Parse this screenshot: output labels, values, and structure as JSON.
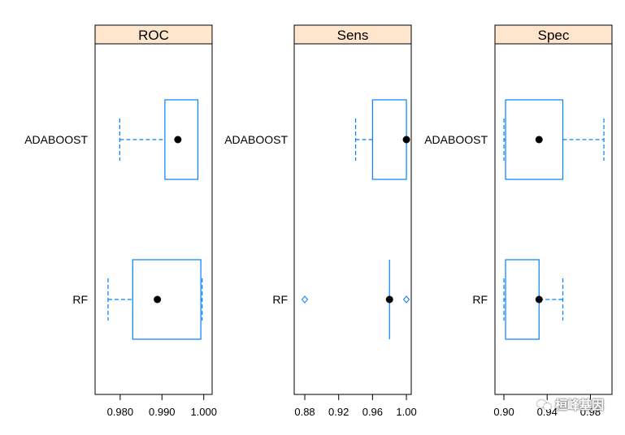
{
  "chart_data": [
    {
      "type": "box",
      "panel_title": "ROC",
      "categories": [
        "ADABOOST",
        "RF"
      ],
      "xlim": [
        0.974,
        1.002
      ],
      "ticks": [
        0.98,
        0.99,
        1.0
      ],
      "tick_labels": [
        "0.980",
        "0.990",
        "1.000"
      ],
      "series": [
        {
          "category": "ADABOOST",
          "min": 0.9799,
          "q1": 0.9907,
          "median": 0.9938,
          "q3": 0.9986,
          "max": 0.9986,
          "outliers": []
        },
        {
          "category": "RF",
          "min": 0.9771,
          "q1": 0.983,
          "median": 0.9889,
          "q3": 0.9993,
          "max": 0.9996,
          "outliers": []
        }
      ]
    },
    {
      "type": "box",
      "panel_title": "Sens",
      "categories": [
        "ADABOOST",
        "RF"
      ],
      "xlim": [
        0.8675,
        1.0057
      ],
      "ticks": [
        0.88,
        0.92,
        0.96,
        1.0
      ],
      "tick_labels": [
        "0.88",
        "0.92",
        "0.96",
        "1.00"
      ],
      "series": [
        {
          "category": "ADABOOST",
          "min": 0.94,
          "q1": 0.96,
          "median": 1.0,
          "q3": 1.0,
          "max": 1.0,
          "outliers": []
        },
        {
          "category": "RF",
          "min": 0.98,
          "q1": 0.98,
          "median": 0.98,
          "q3": 0.98,
          "max": 0.98,
          "outliers": [
            0.88,
            1.0
          ]
        }
      ]
    },
    {
      "type": "box",
      "panel_title": "Spec",
      "categories": [
        "ADABOOST",
        "RF"
      ],
      "xlim": [
        0.8917,
        1.0
      ],
      "ticks": [
        0.9,
        0.94,
        0.98
      ],
      "tick_labels": [
        "0.90",
        "0.94",
        "0.98"
      ],
      "series": [
        {
          "category": "ADABOOST",
          "min": 0.9,
          "q1": 0.9015,
          "median": 0.9325,
          "q3": 0.9545,
          "max": 0.9925,
          "outliers": []
        },
        {
          "category": "RF",
          "min": 0.9,
          "q1": 0.9015,
          "median": 0.9325,
          "q3": 0.9325,
          "max": 0.9545,
          "outliers": []
        }
      ]
    }
  ],
  "colors": {
    "strip_bg": "#ffe5cc",
    "box": "#0080ff",
    "median_dot": "#000000",
    "frame": "#000000"
  },
  "watermark": "桓峰基因"
}
